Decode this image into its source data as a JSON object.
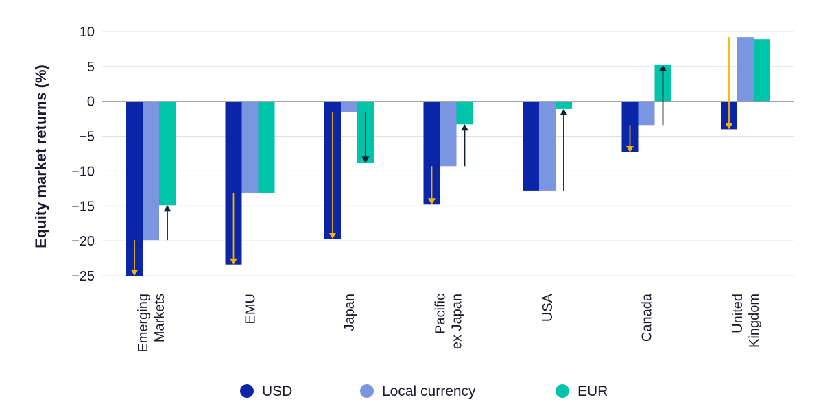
{
  "chart_data": {
    "type": "bar",
    "ylabel": "Equity market returns (%)",
    "ylim": [
      -25,
      10
    ],
    "yticks": [
      10,
      5,
      0,
      -5,
      -10,
      -15,
      -20,
      -25
    ],
    "grid": true,
    "legend_position": "bottom",
    "categories": [
      [
        "Emerging",
        "Markets"
      ],
      [
        "EMU"
      ],
      [
        "Japan"
      ],
      [
        "Pacific",
        "ex Japan"
      ],
      [
        "USA"
      ],
      [
        "Canada"
      ],
      [
        "United",
        "Kingdom"
      ]
    ],
    "series": [
      {
        "name": "USD",
        "color": "#0a25a8",
        "values": [
          -25.0,
          -23.4,
          -19.7,
          -14.8,
          -12.8,
          -7.3,
          -4.0
        ]
      },
      {
        "name": "Local currency",
        "color": "#7b96e0",
        "values": [
          -19.9,
          -13.1,
          -1.6,
          -9.3,
          -12.8,
          -3.4,
          9.2
        ]
      },
      {
        "name": "EUR",
        "color": "#00c4aa",
        "values": [
          -14.9,
          -13.1,
          -8.8,
          -3.3,
          -1.1,
          5.2,
          8.9
        ]
      }
    ],
    "annotations": {
      "description": "arrows show currency effect",
      "usd_arrows": [
        {
          "from": -19.9,
          "to": -25.0
        },
        {
          "from": -13.1,
          "to": -23.4
        },
        {
          "from": -1.6,
          "to": -19.7
        },
        {
          "from": -9.3,
          "to": -14.8
        },
        null,
        {
          "from": -3.4,
          "to": -7.3
        },
        {
          "from": 9.2,
          "to": -4.0
        }
      ],
      "usd_arrow_color": "#f5b400",
      "eur_arrows": [
        {
          "from": -19.9,
          "to": -14.9
        },
        null,
        {
          "from": -1.6,
          "to": -8.8
        },
        {
          "from": -9.3,
          "to": -3.3
        },
        {
          "from": -12.8,
          "to": -1.1
        },
        {
          "from": -3.4,
          "to": 5.2
        },
        null
      ],
      "eur_arrow_color": "#0d1f33"
    }
  }
}
